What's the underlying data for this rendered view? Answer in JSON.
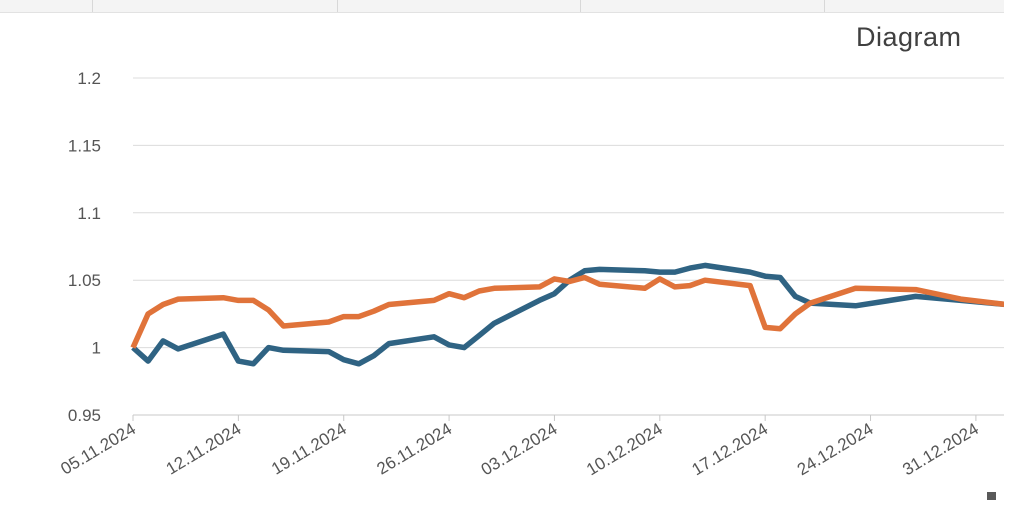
{
  "chart_data": {
    "type": "line",
    "title": "Diagram",
    "ylim": [
      0.95,
      1.2
    ],
    "yticks": [
      "0.95",
      "1",
      "1.05",
      "1.1",
      "1.15",
      "1.2"
    ],
    "xlim": [
      "2024-11-05",
      "2025-01-02"
    ],
    "xtick_dates": [
      "2024-11-05",
      "2024-11-12",
      "2024-11-19",
      "2024-11-26",
      "2024-12-03",
      "2024-12-10",
      "2024-12-17",
      "2024-12-24",
      "2024-12-31"
    ],
    "xtick_labels": [
      "05.11.2024",
      "12.11.2024",
      "19.11.2024",
      "26.11.2024",
      "03.12.2024",
      "10.12.2024",
      "17.12.2024",
      "24.12.2024",
      "31.12.2024"
    ],
    "grid": true,
    "series": [
      {
        "color": "#2f6383",
        "points": [
          [
            "2024-11-05",
            1.0
          ],
          [
            "2024-11-06",
            0.99
          ],
          [
            "2024-11-07",
            1.005
          ],
          [
            "2024-11-08",
            0.999
          ],
          [
            "2024-11-11",
            1.01
          ],
          [
            "2024-11-12",
            0.99
          ],
          [
            "2024-11-13",
            0.988
          ],
          [
            "2024-11-14",
            1.0
          ],
          [
            "2024-11-15",
            0.998
          ],
          [
            "2024-11-18",
            0.997
          ],
          [
            "2024-11-19",
            0.991
          ],
          [
            "2024-11-20",
            0.988
          ],
          [
            "2024-11-21",
            0.994
          ],
          [
            "2024-11-22",
            1.003
          ],
          [
            "2024-11-25",
            1.008
          ],
          [
            "2024-11-26",
            1.002
          ],
          [
            "2024-11-27",
            1.0
          ],
          [
            "2024-11-28",
            1.009
          ],
          [
            "2024-11-29",
            1.018
          ],
          [
            "2024-12-02",
            1.035
          ],
          [
            "2024-12-03",
            1.04
          ],
          [
            "2024-12-04",
            1.05
          ],
          [
            "2024-12-05",
            1.057
          ],
          [
            "2024-12-06",
            1.058
          ],
          [
            "2024-12-09",
            1.057
          ],
          [
            "2024-12-10",
            1.056
          ],
          [
            "2024-12-11",
            1.056
          ],
          [
            "2024-12-12",
            1.059
          ],
          [
            "2024-12-13",
            1.061
          ],
          [
            "2024-12-16",
            1.056
          ],
          [
            "2024-12-17",
            1.053
          ],
          [
            "2024-12-18",
            1.052
          ],
          [
            "2024-12-19",
            1.038
          ],
          [
            "2024-12-20",
            1.033
          ],
          [
            "2024-12-23",
            1.031
          ],
          [
            "2024-12-27",
            1.038
          ],
          [
            "2024-12-30",
            1.035
          ],
          [
            "2025-01-02",
            1.032
          ]
        ]
      },
      {
        "color": "#e0733a",
        "points": [
          [
            "2024-11-05",
            1.0
          ],
          [
            "2024-11-06",
            1.025
          ],
          [
            "2024-11-07",
            1.032
          ],
          [
            "2024-11-08",
            1.036
          ],
          [
            "2024-11-11",
            1.037
          ],
          [
            "2024-11-12",
            1.035
          ],
          [
            "2024-11-13",
            1.035
          ],
          [
            "2024-11-14",
            1.028
          ],
          [
            "2024-11-15",
            1.016
          ],
          [
            "2024-11-18",
            1.019
          ],
          [
            "2024-11-19",
            1.023
          ],
          [
            "2024-11-20",
            1.023
          ],
          [
            "2024-11-21",
            1.027
          ],
          [
            "2024-11-22",
            1.032
          ],
          [
            "2024-11-25",
            1.035
          ],
          [
            "2024-11-26",
            1.04
          ],
          [
            "2024-11-27",
            1.037
          ],
          [
            "2024-11-28",
            1.042
          ],
          [
            "2024-11-29",
            1.044
          ],
          [
            "2024-12-02",
            1.045
          ],
          [
            "2024-12-03",
            1.051
          ],
          [
            "2024-12-04",
            1.049
          ],
          [
            "2024-12-05",
            1.052
          ],
          [
            "2024-12-06",
            1.047
          ],
          [
            "2024-12-09",
            1.044
          ],
          [
            "2024-12-10",
            1.051
          ],
          [
            "2024-12-11",
            1.045
          ],
          [
            "2024-12-12",
            1.046
          ],
          [
            "2024-12-13",
            1.05
          ],
          [
            "2024-12-16",
            1.046
          ],
          [
            "2024-12-17",
            1.015
          ],
          [
            "2024-12-18",
            1.014
          ],
          [
            "2024-12-19",
            1.025
          ],
          [
            "2024-12-20",
            1.033
          ],
          [
            "2024-12-23",
            1.044
          ],
          [
            "2024-12-27",
            1.043
          ],
          [
            "2024-12-30",
            1.036
          ],
          [
            "2025-01-02",
            1.032
          ]
        ]
      }
    ]
  }
}
